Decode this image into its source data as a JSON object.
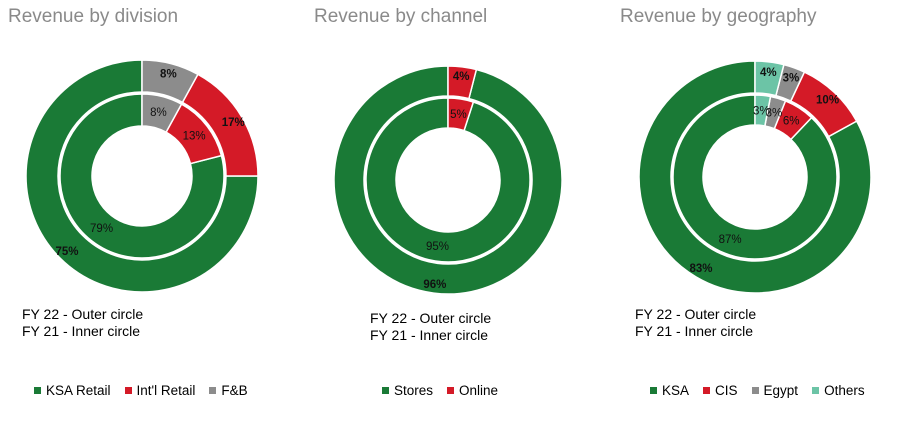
{
  "colors": {
    "KSA Retail": "#1a7a36",
    "Int'l Retail": "#d41a27",
    "F&B": "#8c8c8c",
    "Stores": "#1a7a36",
    "Online": "#d41a27",
    "KSA": "#1a7a36",
    "CIS": "#d41a27",
    "Egypt": "#8c8c8c",
    "Others": "#6cc4a6"
  },
  "chart_data": [
    {
      "type": "donut",
      "title": "Revenue by division",
      "categories": [
        "KSA Retail",
        "Int'l Retail",
        "F&B"
      ],
      "series": [
        {
          "name": "FY 22 - Outer circle",
          "values": [
            75,
            17,
            8
          ],
          "labels": [
            "75%",
            "17%",
            "8%"
          ]
        },
        {
          "name": "FY 21 - Inner circle",
          "values": [
            79,
            13,
            8
          ],
          "labels": [
            "79%",
            "13%",
            "8%"
          ]
        }
      ],
      "caption": [
        "FY 22 - Outer circle",
        "FY 21 - Inner circle"
      ],
      "legend": [
        "KSA Retail",
        "Int'l Retail",
        "F&B"
      ]
    },
    {
      "type": "donut",
      "title": "Revenue by channel",
      "categories": [
        "Stores",
        "Online"
      ],
      "series": [
        {
          "name": "FY 22 - Outer circle",
          "values": [
            96,
            4
          ],
          "labels": [
            "96%",
            "4%"
          ]
        },
        {
          "name": "FY 21 - Inner circle",
          "values": [
            95,
            5
          ],
          "labels": [
            "95%",
            "5%"
          ]
        }
      ],
      "caption": [
        "FY 22 - Outer circle",
        "FY 21 - Inner circle"
      ],
      "legend": [
        "Stores",
        "Online"
      ]
    },
    {
      "type": "donut",
      "title": "Revenue by geography",
      "categories": [
        "KSA",
        "CIS",
        "Egypt",
        "Others"
      ],
      "series": [
        {
          "name": "FY 22 - Outer circle",
          "values": [
            83,
            10,
            3,
            4
          ],
          "labels": [
            "83%",
            "10%",
            "3%",
            "4%"
          ]
        },
        {
          "name": "FY 21 - Inner circle",
          "values": [
            87,
            6,
            3,
            3
          ],
          "labels": [
            "87%",
            "6%",
            "3%",
            "3%"
          ]
        }
      ],
      "caption": [
        "FY 22 - Outer circle",
        "FY 21 - Inner circle"
      ],
      "legend": [
        "KSA",
        "CIS",
        "Egypt",
        "Others"
      ]
    }
  ]
}
